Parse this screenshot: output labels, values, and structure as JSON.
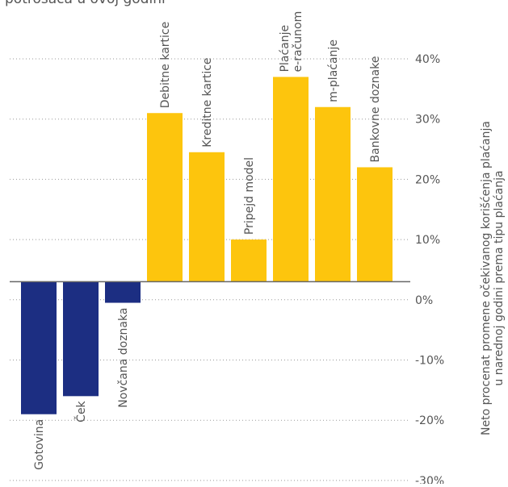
{
  "chart_data": {
    "type": "bar",
    "title": "potrošača u ovoj godini",
    "ylabel_lines": [
      "Neto procenat promene očekivanog korišćenja plaćanja",
      "u narednoj godini prema tipu plaćanja"
    ],
    "ylim": [
      -30,
      40
    ],
    "ticks": [
      40,
      30,
      20,
      10,
      0,
      -10,
      -20,
      -30
    ],
    "tick_labels": [
      "40%",
      "30%",
      "20%",
      "10%",
      "0%",
      "-10%",
      "-20%",
      "-30%"
    ],
    "grid": true,
    "baseline": 3,
    "colors": {
      "positive": "#FDC50D",
      "negative": "#1C2E82",
      "text": "#555555",
      "grid": "#999999",
      "axis": "#666666"
    },
    "bars": [
      {
        "label": [
          "Gotovina"
        ],
        "value": -19
      },
      {
        "label": [
          "Ček"
        ],
        "value": -16
      },
      {
        "label": [
          "Novčana doznaka"
        ],
        "value": -0.5
      },
      {
        "label": [
          "Debitne kartice"
        ],
        "value": 31
      },
      {
        "label": [
          "Kreditne kartice"
        ],
        "value": 24.5
      },
      {
        "label": [
          "Pripejd model"
        ],
        "value": 10
      },
      {
        "label": [
          "Plaćanje",
          "e-računom"
        ],
        "value": 37
      },
      {
        "label": [
          "m-plaćanje"
        ],
        "value": 32
      },
      {
        "label": [
          "Bankovne doznake"
        ],
        "value": 22
      }
    ]
  }
}
